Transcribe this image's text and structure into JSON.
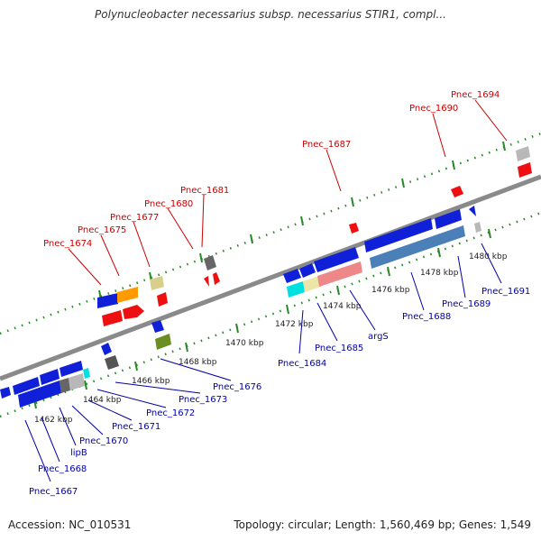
{
  "title": "Polynucleobacter necessarius subsp. necessarius STIR1, compl...",
  "footer": {
    "accession": "Accession: NC_010531",
    "summary": "Topology: circular; Length: 1,560,469 bp; Genes: 1,549"
  },
  "colors": {
    "top_label": "#cc0000",
    "bottom_label": "#0000aa",
    "backbone": "#8a8a8a",
    "tick": "#2a8a2a"
  },
  "kbp_labels": [
    {
      "text": "1462 kbp",
      "pos": 1462
    },
    {
      "text": "1464 kbp",
      "pos": 1464
    },
    {
      "text": "1466 kbp",
      "pos": 1466
    },
    {
      "text": "1468 kbp",
      "pos": 1468
    },
    {
      "text": "1470 kbp",
      "pos": 1470
    },
    {
      "text": "1472 kbp",
      "pos": 1472
    },
    {
      "text": "1474 kbp",
      "pos": 1474
    },
    {
      "text": "1476 kbp",
      "pos": 1476
    },
    {
      "text": "1478 kbp",
      "pos": 1478
    },
    {
      "text": "1480 kbp",
      "pos": 1480
    }
  ],
  "top_labels": [
    {
      "text": "Pnec_1674",
      "gene_kbp": 1466.6
    },
    {
      "text": "Pnec_1675",
      "gene_kbp": 1467.0
    },
    {
      "text": "Pnec_1677",
      "gene_kbp": 1467.7
    },
    {
      "text": "Pnec_1680",
      "gene_kbp": 1468.7
    },
    {
      "text": "Pnec_1681",
      "gene_kbp": 1468.9
    },
    {
      "text": "Pnec_1687",
      "gene_kbp": 1473.8
    },
    {
      "text": "Pnec_1690",
      "gene_kbp": 1477.3
    },
    {
      "text": "Pnec_1694",
      "gene_kbp": 1479.8
    }
  ],
  "bottom_labels": [
    {
      "text": "Pnec_1667",
      "gene_kbp": 1461.0
    },
    {
      "text": "Pnec_1668",
      "gene_kbp": 1461.5
    },
    {
      "text": "lipB",
      "gene_kbp": 1462.0
    },
    {
      "text": "Pnec_1670",
      "gene_kbp": 1462.5
    },
    {
      "text": "Pnec_1671",
      "gene_kbp": 1463.0
    },
    {
      "text": "Pnec_1672",
      "gene_kbp": 1463.7
    },
    {
      "text": "Pnec_1673",
      "gene_kbp": 1464.2
    },
    {
      "text": "Pnec_1676",
      "gene_kbp": 1466.6
    },
    {
      "text": "Pnec_1684",
      "gene_kbp": 1471.8
    },
    {
      "text": "Pnec_1685",
      "gene_kbp": 1472.3
    },
    {
      "text": "argS",
      "gene_kbp": 1473.5
    },
    {
      "text": "Pnec_1688",
      "gene_kbp": 1475.8
    },
    {
      "text": "Pnec_1689",
      "gene_kbp": 1476.8
    },
    {
      "text": "Pnec_1691",
      "gene_kbp": 1478.5
    }
  ]
}
